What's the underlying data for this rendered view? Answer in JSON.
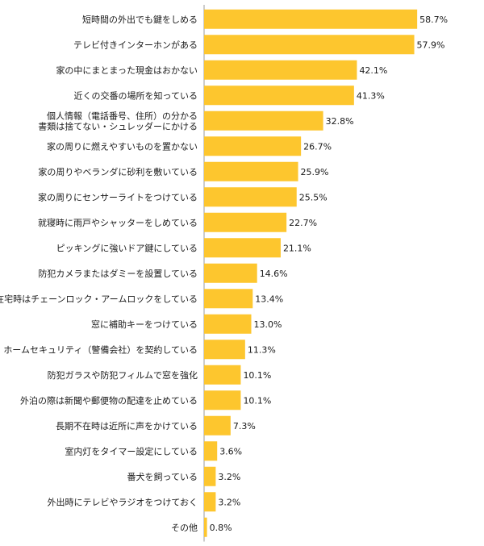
{
  "chart_data": {
    "type": "bar",
    "orientation": "horizontal",
    "color": "#FDC62E",
    "axis_color": "#9a9a9a",
    "xlim": [
      0,
      60
    ],
    "grid": false,
    "categories": [
      [
        "短時間の外出でも鍵をしめる"
      ],
      [
        "テレビ付きインターホンがある"
      ],
      [
        "家の中にまとまった現金はおかない"
      ],
      [
        "近くの交番の場所を知っている"
      ],
      [
        "個人情報（電話番号、住所）の分かる",
        "書類は捨てない・シュレッダーにかける"
      ],
      [
        "家の周りに燃えやすいものを置かない"
      ],
      [
        "家の周りやベランダに砂利を敷いている"
      ],
      [
        "家の周りにセンサーライトをつけている"
      ],
      [
        "就寝時に雨戸やシャッターをしめている"
      ],
      [
        "ピッキングに強いドア鍵にしている"
      ],
      [
        "防犯カメラまたはダミーを設置している"
      ],
      [
        "在宅時はチェーンロック・アームロックをしている"
      ],
      [
        "窓に補助キーをつけている"
      ],
      [
        "ホームセキュリティ（警備会社）を契約している"
      ],
      [
        "防犯ガラスや防犯フィルムで窓を強化"
      ],
      [
        "外泊の際は新聞や郵便物の配達を止めている"
      ],
      [
        "長期不在時は近所に声をかけている"
      ],
      [
        "室内灯をタイマー設定にしている"
      ],
      [
        "番犬を飼っている"
      ],
      [
        "外出時にテレビやラジオをつけておく"
      ],
      [
        "その他"
      ]
    ],
    "values": [
      58.7,
      57.9,
      42.1,
      41.3,
      32.8,
      26.7,
      25.9,
      25.5,
      22.7,
      21.1,
      14.6,
      13.4,
      13.0,
      11.3,
      10.1,
      10.1,
      7.3,
      3.6,
      3.2,
      3.2,
      0.8
    ],
    "value_labels": [
      "58.7%",
      "57.9%",
      "42.1%",
      "41.3%",
      "32.8%",
      "26.7%",
      "25.9%",
      "25.5%",
      "22.7%",
      "21.1%",
      "14.6%",
      "13.4%",
      "13.0%",
      "11.3%",
      "10.1%",
      "10.1%",
      "7.3%",
      "3.6%",
      "3.2%",
      "3.2%",
      "0.8%"
    ]
  }
}
